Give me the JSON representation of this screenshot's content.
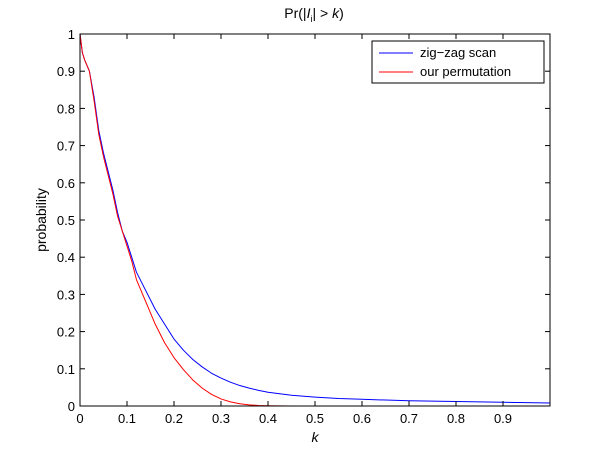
{
  "chart_data": {
    "type": "line",
    "title": "Pr(|I_i| > k)",
    "xlabel": "k",
    "ylabel": "probability",
    "xlim": [
      0,
      1
    ],
    "ylim": [
      0,
      1
    ],
    "xticks": [
      "0",
      "0.1",
      "0.2",
      "0.3",
      "0.4",
      "0.5",
      "0.6",
      "0.7",
      "0.8",
      "0.9"
    ],
    "yticks": [
      "0",
      "0.1",
      "0.2",
      "0.3",
      "0.4",
      "0.5",
      "0.6",
      "0.7",
      "0.8",
      "0.9",
      "1"
    ],
    "grid": false,
    "legend_position": "top-right",
    "series": [
      {
        "name": "zig−zag scan",
        "color": "#0000ff",
        "x": [
          0,
          0.005,
          0.01,
          0.02,
          0.03,
          0.04,
          0.05,
          0.06,
          0.07,
          0.08,
          0.09,
          0.1,
          0.11,
          0.12,
          0.14,
          0.16,
          0.18,
          0.2,
          0.22,
          0.24,
          0.26,
          0.28,
          0.3,
          0.32,
          0.34,
          0.36,
          0.38,
          0.4,
          0.45,
          0.5,
          0.55,
          0.6,
          0.65,
          0.7,
          0.75,
          0.8,
          0.85,
          0.9,
          0.95,
          1.0
        ],
        "y": [
          1.0,
          0.95,
          0.93,
          0.9,
          0.83,
          0.74,
          0.68,
          0.63,
          0.58,
          0.52,
          0.47,
          0.44,
          0.4,
          0.36,
          0.31,
          0.26,
          0.22,
          0.18,
          0.15,
          0.125,
          0.105,
          0.088,
          0.075,
          0.064,
          0.055,
          0.048,
          0.042,
          0.037,
          0.029,
          0.024,
          0.02,
          0.018,
          0.016,
          0.014,
          0.013,
          0.012,
          0.011,
          0.01,
          0.009,
          0.008
        ]
      },
      {
        "name": "our permutation",
        "color": "#ff0000",
        "x": [
          0,
          0.005,
          0.01,
          0.02,
          0.03,
          0.04,
          0.05,
          0.06,
          0.07,
          0.08,
          0.09,
          0.1,
          0.11,
          0.12,
          0.14,
          0.16,
          0.18,
          0.2,
          0.22,
          0.24,
          0.26,
          0.28,
          0.3,
          0.32,
          0.34,
          0.36,
          0.38,
          0.4,
          0.42,
          0.45,
          0.5,
          0.6,
          0.7,
          0.8,
          0.9,
          1.0
        ],
        "y": [
          1.0,
          0.95,
          0.93,
          0.9,
          0.82,
          0.73,
          0.67,
          0.62,
          0.57,
          0.51,
          0.47,
          0.43,
          0.39,
          0.34,
          0.28,
          0.22,
          0.17,
          0.13,
          0.098,
          0.07,
          0.048,
          0.031,
          0.019,
          0.011,
          0.006,
          0.003,
          0.0015,
          0.0008,
          0.0004,
          0.0001,
          0,
          0,
          0,
          0,
          0,
          0
        ]
      }
    ]
  }
}
